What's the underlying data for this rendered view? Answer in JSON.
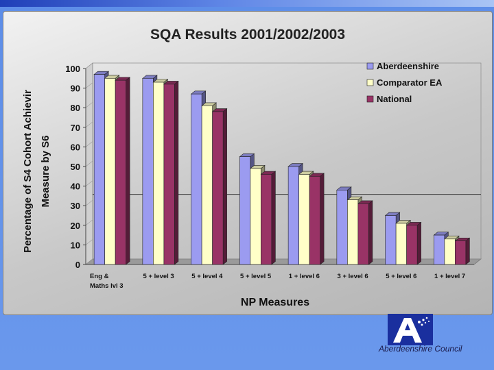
{
  "footer": {
    "organization": "Aberdeenshire Council"
  },
  "chart_data": {
    "type": "bar",
    "title": "SQA Results 2001/2002/2003",
    "xlabel": "NP Measures",
    "ylabel_lines": [
      "Percentage of S4 Cohort Achievir",
      "Measure by S6"
    ],
    "ylim": [
      0,
      100
    ],
    "yticks": [
      0,
      10,
      20,
      30,
      40,
      50,
      60,
      70,
      80,
      90,
      100
    ],
    "categories": [
      [
        "Eng &",
        "Maths lvl 3"
      ],
      [
        "5 + level 3"
      ],
      [
        "5 + level 4"
      ],
      [
        "5 + level 5"
      ],
      [
        "1 + level 6"
      ],
      [
        "3 + level 6"
      ],
      [
        "5 + level 6"
      ],
      [
        "1 + level 7"
      ]
    ],
    "series": [
      {
        "name": "Aberdeenshire",
        "color": "#9b9bf0",
        "values": [
          97,
          95,
          87,
          55,
          50,
          38,
          25,
          15
        ]
      },
      {
        "name": "Comparator EA",
        "color": "#ffffc8",
        "values": [
          95,
          93,
          81,
          49,
          46,
          33,
          21,
          13
        ]
      },
      {
        "name": "National",
        "color": "#993366",
        "values": [
          94,
          92,
          78,
          46,
          45,
          31,
          20,
          12
        ]
      }
    ],
    "reference_line": 33,
    "legend_position": "top-right",
    "grid": false
  }
}
